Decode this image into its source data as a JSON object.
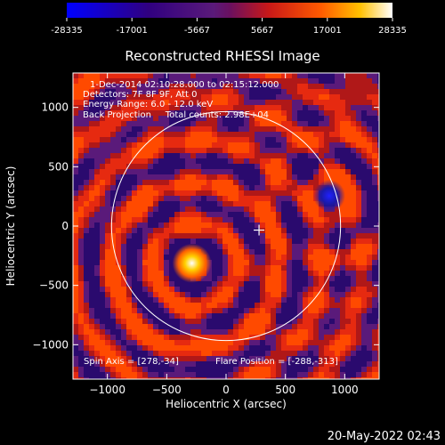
{
  "colorbar": {
    "min": -28335,
    "max": 28335,
    "ticks": [
      {
        "value": -28335,
        "label": "-28335"
      },
      {
        "value": -17001,
        "label": "-17001"
      },
      {
        "value": -5667,
        "label": "-5667"
      },
      {
        "value": 5667,
        "label": "5667"
      },
      {
        "value": 17001,
        "label": "17001"
      },
      {
        "value": 28335,
        "label": "28335"
      }
    ]
  },
  "chart_data": {
    "type": "heatmap",
    "title": "Reconstructed RHESSI Image",
    "xlabel": "Heliocentric X (arcsec)",
    "ylabel": "Heliocentric Y (arcsec)",
    "xlim": [
      -1290,
      1290
    ],
    "ylim": [
      -1290,
      1290
    ],
    "xticks": [
      -1000,
      -500,
      0,
      500,
      1000
    ],
    "yticks": [
      -1000,
      -500,
      0,
      500,
      1000
    ],
    "info_lines": [
      "1-Dec-2014 02:10:28.000 to 02:15:12.000",
      "Detectors: 7F 8F 9F, Att 0",
      "Energy Range: 6.0 - 12.0 keV",
      "Back Projection     Total counts: 2.98E+04"
    ],
    "spin_axis_text": "Spin Axis = [278,-34]",
    "flare_position_text": "Flare Position = [-288,-313]",
    "solar_disk": {
      "center": [
        0,
        0
      ],
      "radius_arcsec": 965
    },
    "center_marker": [
      278,
      -34
    ],
    "bright_source": {
      "x": -288,
      "y": -313,
      "value": 28335
    },
    "dark_source": {
      "x": 870,
      "y": 255,
      "value": -28335
    }
  },
  "footer_date": "20-May-2022 02:43"
}
